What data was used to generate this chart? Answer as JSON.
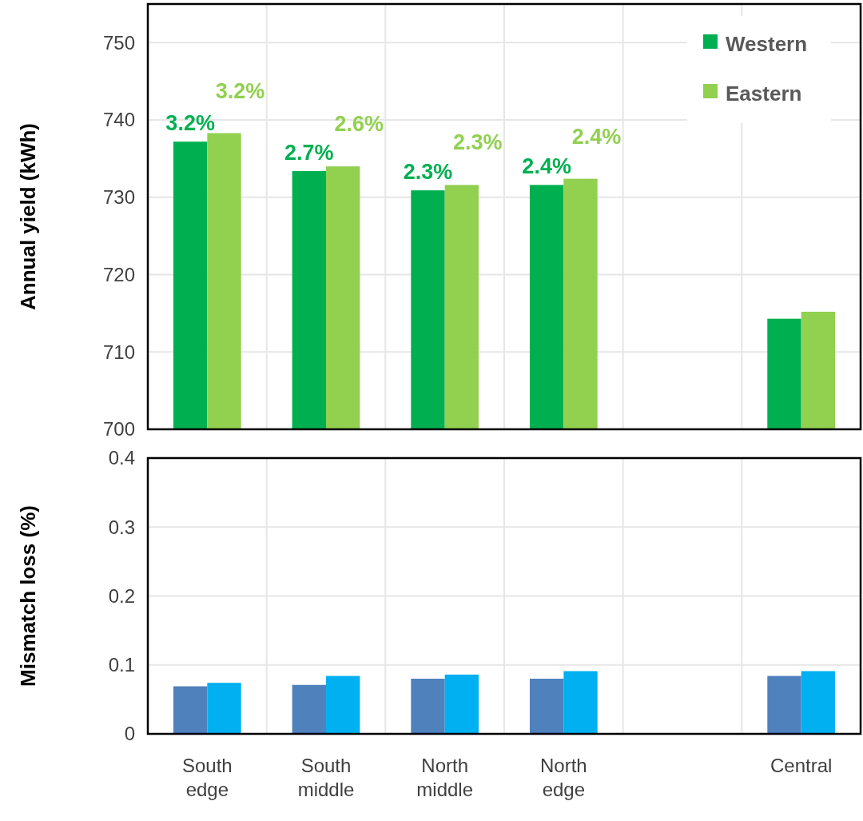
{
  "chart_data": [
    {
      "type": "bar",
      "ylabel": "Annual yield (kWh)",
      "categories": [
        "South edge",
        "South middle",
        "North middle",
        "North edge",
        null,
        "Central"
      ],
      "ylim": [
        700,
        755
      ],
      "yticks": [
        700,
        710,
        720,
        730,
        740,
        750
      ],
      "grid": true,
      "legend": "top right",
      "tick_labels": "y",
      "series": [
        {
          "name": "Western",
          "color": "#00b050",
          "values": [
            737.2,
            733.4,
            730.9,
            731.6,
            null,
            714.3
          ]
        },
        {
          "name": "Eastern",
          "color": "#92d050",
          "values": [
            738.3,
            734.0,
            731.6,
            732.4,
            null,
            715.2
          ]
        }
      ],
      "annotations": [
        {
          "text": "3.2%",
          "x": "South edge",
          "y": 737.2
        },
        {
          "text": "3.2%",
          "x": "South edge",
          "y": 738.3
        },
        {
          "text": "2.7%",
          "x": "South middle",
          "y": 733.4
        },
        {
          "text": "2.6%",
          "x": "South middle",
          "y": 734.0
        },
        {
          "text": "2.3%",
          "x": "North middle",
          "y": 730.9
        },
        {
          "text": "2.3%",
          "x": "North middle",
          "y": 731.6
        },
        {
          "text": "2.4%",
          "x": "North edge",
          "y": 731.6
        },
        {
          "text": "2.4%",
          "x": "North edge",
          "y": 732.4
        }
      ]
    },
    {
      "type": "bar",
      "ylabel": "Mismatch loss (%)",
      "categories": [
        "South edge",
        "South middle",
        "North middle",
        "North edge",
        null,
        "Central"
      ],
      "ylim": [
        0,
        0.4
      ],
      "yticks": [
        0,
        0.1,
        0.2,
        0.3,
        0.4
      ],
      "grid": true,
      "series": [
        {
          "color": "#4f81bd",
          "values": [
            0.069,
            0.071,
            0.08,
            0.08,
            null,
            0.084
          ]
        },
        {
          "color": "#00b0f0",
          "values": [
            0.074,
            0.084,
            0.086,
            0.091,
            null,
            0.091
          ]
        }
      ]
    }
  ]
}
